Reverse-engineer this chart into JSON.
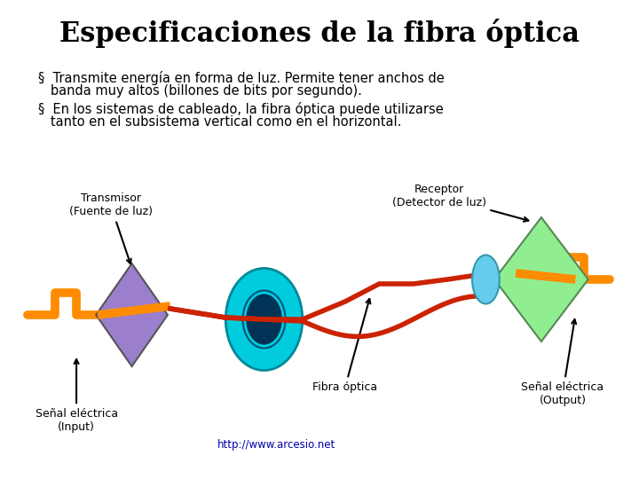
{
  "title": "Especificaciones de la fibra óptica",
  "bullet1_line1": "§  Transmite energía en forma de luz. Permite tener anchos de",
  "bullet1_line2": "   banda muy altos (billones de bits por segundo).",
  "bullet2_line1": "§  En los sistemas de cableado, la fibra óptica puede utilizarse",
  "bullet2_line2": "   tanto en el subsistema vertical como en el horizontal.",
  "label_transmisor": "Transmisor\n(Fuente de luz)",
  "label_receptor": "Receptor\n(Detector de luz)",
  "label_fibra": "Fibra óptica",
  "label_senal_input": "Señal eléctrica\n(Input)",
  "label_senal_output": "Señal eléctrica\n(Output)",
  "url": "http://www.arcesio.net",
  "bg_color": "#ffffff",
  "title_color": "#000000",
  "text_color": "#000000",
  "orange_color": "#FF8C00",
  "red_fiber_color": "#CC2200",
  "purple_diamond_color": "#9B7FCC",
  "green_diamond_color": "#90EE90",
  "cyan_ellipse_color": "#00CCDD",
  "small_ellipse_color": "#66CCEE",
  "url_color": "#0000AA"
}
